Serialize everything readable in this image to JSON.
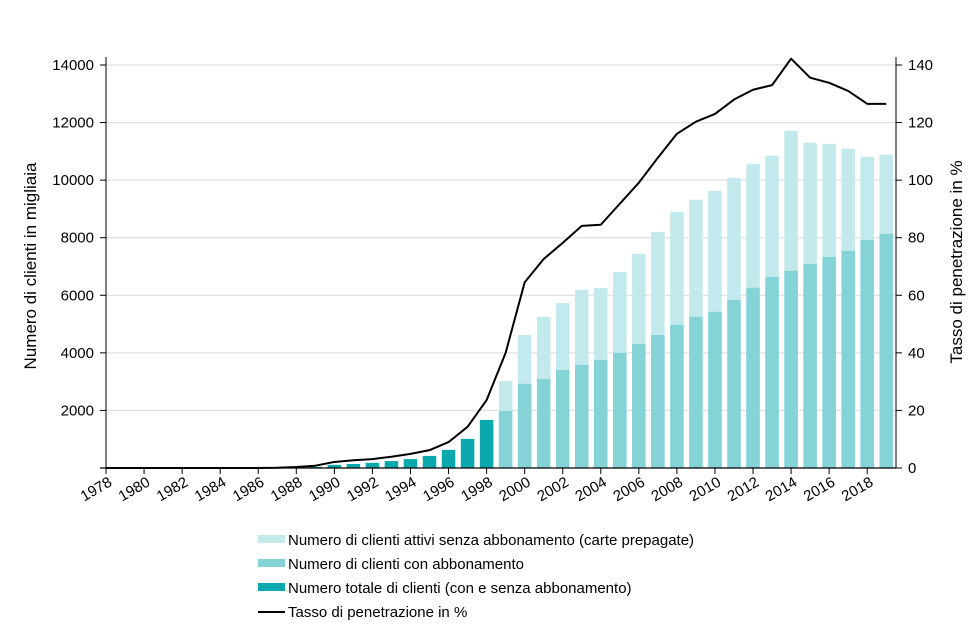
{
  "chart_data": {
    "type": "bar",
    "title": "",
    "xlabel": "",
    "ylabel": "Numero di clienti in migliaia",
    "y2label": "Tasso di penetrazione in %",
    "ylim": [
      0,
      14000
    ],
    "y2lim": [
      0,
      140
    ],
    "yticks": [
      "2000",
      "4000",
      "6000",
      "8000",
      "10000",
      "12000",
      "14000"
    ],
    "y2ticks": [
      "0",
      "20",
      "40",
      "60",
      "80",
      "100",
      "120",
      "140"
    ],
    "xtick_labels": [
      "1978",
      "1980",
      "1982",
      "1984",
      "1986",
      "1988",
      "1990",
      "1992",
      "1994",
      "1996",
      "1998",
      "2000",
      "2002",
      "2004",
      "2006",
      "2008",
      "2010",
      "2012",
      "2014",
      "2016",
      "2018"
    ],
    "grid": true,
    "legend_position": "bottom",
    "years": [
      1978,
      1979,
      1980,
      1981,
      1982,
      1983,
      1984,
      1985,
      1986,
      1987,
      1988,
      1989,
      1990,
      1991,
      1992,
      1993,
      1994,
      1995,
      1996,
      1997,
      1998,
      1999,
      2000,
      2001,
      2002,
      2003,
      2004,
      2005,
      2006,
      2007,
      2008,
      2009,
      2010,
      2011,
      2012,
      2013,
      2014,
      2015,
      2016,
      2017,
      2018,
      2019
    ],
    "series": [
      {
        "name": "Numero totale di clienti (con e senza abbonamento)",
        "kind": "bar",
        "color": "#0aa9ae",
        "values": [
          0,
          0,
          0,
          0,
          0,
          0,
          0,
          0,
          0,
          0,
          10,
          40,
          110,
          140,
          180,
          240,
          310,
          420,
          630,
          1010,
          1670,
          null,
          null,
          null,
          null,
          null,
          null,
          null,
          null,
          null,
          null,
          null,
          null,
          null,
          null,
          null,
          null,
          null,
          null,
          null,
          null,
          null
        ]
      },
      {
        "name": "Numero di clienti con abbonamento",
        "kind": "bar",
        "color": "#84d3d7",
        "values": [
          null,
          null,
          null,
          null,
          null,
          null,
          null,
          null,
          null,
          null,
          null,
          null,
          null,
          null,
          null,
          null,
          null,
          null,
          null,
          null,
          null,
          1980,
          2920,
          3090,
          3400,
          3580,
          3750,
          4000,
          4310,
          4620,
          4970,
          5250,
          5420,
          5840,
          6260,
          6640,
          6850,
          7090,
          7330,
          7540,
          7920,
          8130
        ]
      },
      {
        "name": "Numero di clienti attivi senza abbonamento (carte prepagate)",
        "kind": "bar-stacked-total",
        "color": "#c2e9ec",
        "totals": [
          null,
          null,
          null,
          null,
          null,
          null,
          null,
          null,
          null,
          null,
          null,
          null,
          null,
          null,
          null,
          null,
          null,
          null,
          null,
          null,
          null,
          3020,
          4620,
          5250,
          5730,
          6190,
          6250,
          6810,
          7440,
          8200,
          8900,
          9320,
          9630,
          10080,
          10570,
          10850,
          11710,
          11300,
          11260,
          11090,
          10810,
          10880
        ]
      },
      {
        "name": "Tasso di penetrazione in %",
        "kind": "line",
        "axis": "right",
        "color": "#000000",
        "values": [
          0,
          0,
          0,
          0,
          0,
          0,
          0,
          0,
          0,
          0.1,
          0.35,
          0.8,
          2.1,
          2.7,
          3.1,
          3.9,
          4.9,
          6.2,
          9.0,
          14.3,
          23.6,
          40.0,
          64.5,
          72.6,
          78.2,
          84.1,
          84.5,
          91.8,
          99.1,
          107.8,
          116.1,
          120.3,
          123.0,
          128.0,
          131.4,
          133.0,
          142.2,
          135.6,
          133.8,
          131.0,
          126.5,
          126.5
        ]
      }
    ],
    "legend": [
      {
        "label": "Numero di clienti attivi senza abbonamento (carte prepagate)",
        "swatch": "bar",
        "color": "#c2e9ec"
      },
      {
        "label": "Numero di clienti con abbonamento",
        "swatch": "bar",
        "color": "#84d3d7"
      },
      {
        "label": "Numero totale di clienti (con e senza abbonamento)",
        "swatch": "bar",
        "color": "#0aa9ae"
      },
      {
        "label": "Tasso di penetrazione in %",
        "swatch": "line",
        "color": "#000000"
      }
    ]
  }
}
